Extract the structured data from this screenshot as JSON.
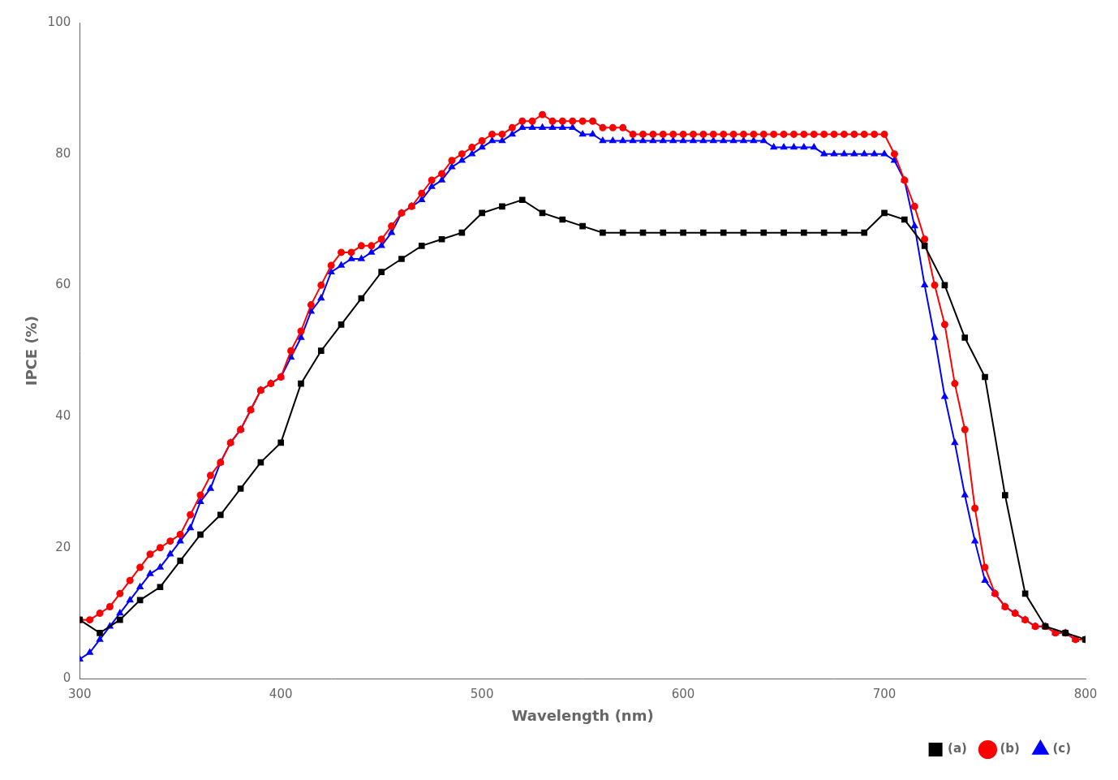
{
  "chart_data": {
    "type": "line",
    "x_label": "Wavelength (nm)",
    "y_label": "IPCE (%)",
    "xlim": [
      300,
      800
    ],
    "ylim": [
      0,
      100
    ],
    "xticks": [
      300,
      400,
      500,
      600,
      700,
      800
    ],
    "yticks": [
      0,
      20,
      40,
      60,
      80,
      100
    ],
    "grid": false,
    "legend": "lower right",
    "series": [
      {
        "name": "(a)",
        "color": "#000000",
        "marker": "square",
        "x": [
          300,
          310,
          320,
          330,
          340,
          350,
          360,
          370,
          380,
          390,
          400,
          410,
          420,
          430,
          440,
          450,
          460,
          470,
          480,
          490,
          500,
          510,
          520,
          530,
          540,
          550,
          560,
          570,
          580,
          590,
          600,
          610,
          620,
          630,
          640,
          650,
          660,
          670,
          680,
          690,
          700,
          710,
          720,
          730,
          740,
          750,
          760,
          770,
          780,
          790,
          800
        ],
        "values": [
          9,
          7,
          9,
          12,
          14,
          18,
          22,
          25,
          29,
          33,
          36,
          45,
          50,
          54,
          58,
          62,
          64,
          66,
          67,
          68,
          71,
          72,
          73,
          71,
          70,
          69,
          68,
          68,
          68,
          68,
          68,
          68,
          68,
          68,
          68,
          68,
          68,
          68,
          68,
          68,
          71,
          70,
          66,
          60,
          52,
          46,
          28,
          13,
          8,
          7,
          6
        ]
      },
      {
        "name": "(b)",
        "color": "#FF0000",
        "marker": "circle",
        "x": [
          300,
          305,
          310,
          315,
          320,
          325,
          330,
          335,
          340,
          345,
          350,
          355,
          360,
          365,
          370,
          375,
          380,
          385,
          390,
          395,
          400,
          405,
          410,
          415,
          420,
          425,
          430,
          435,
          440,
          445,
          450,
          455,
          460,
          465,
          470,
          475,
          480,
          485,
          490,
          495,
          500,
          505,
          510,
          515,
          520,
          525,
          530,
          535,
          540,
          545,
          550,
          555,
          560,
          565,
          570,
          575,
          580,
          585,
          590,
          595,
          600,
          605,
          610,
          615,
          620,
          625,
          630,
          635,
          640,
          645,
          650,
          655,
          660,
          665,
          670,
          675,
          680,
          685,
          690,
          695,
          700,
          705,
          710,
          715,
          720,
          725,
          730,
          735,
          740,
          745,
          750,
          755,
          760,
          765,
          770,
          775,
          780,
          785,
          790,
          795,
          800
        ],
        "values": [
          9,
          9,
          10,
          11,
          13,
          15,
          17,
          19,
          20,
          21,
          22,
          25,
          28,
          31,
          33,
          36,
          38,
          41,
          44,
          45,
          46,
          50,
          53,
          57,
          60,
          63,
          65,
          65,
          66,
          66,
          67,
          69,
          71,
          72,
          74,
          76,
          77,
          79,
          80,
          81,
          82,
          83,
          83,
          84,
          85,
          85,
          86,
          85,
          85,
          85,
          85,
          85,
          84,
          84,
          84,
          83,
          83,
          83,
          83,
          83,
          83,
          83,
          83,
          83,
          83,
          83,
          83,
          83,
          83,
          83,
          83,
          83,
          83,
          83,
          83,
          83,
          83,
          83,
          83,
          83,
          83,
          80,
          76,
          72,
          67,
          60,
          54,
          45,
          38,
          26,
          17,
          13,
          11,
          10,
          9,
          8,
          8,
          7,
          7,
          6,
          6
        ]
      },
      {
        "name": "(c)",
        "color": "#0000FF",
        "marker": "triangle",
        "x": [
          300,
          305,
          310,
          315,
          320,
          325,
          330,
          335,
          340,
          345,
          350,
          355,
          360,
          365,
          370,
          375,
          380,
          385,
          390,
          395,
          400,
          405,
          410,
          415,
          420,
          425,
          430,
          435,
          440,
          445,
          450,
          455,
          460,
          465,
          470,
          475,
          480,
          485,
          490,
          495,
          500,
          505,
          510,
          515,
          520,
          525,
          530,
          535,
          540,
          545,
          550,
          555,
          560,
          565,
          570,
          575,
          580,
          585,
          590,
          595,
          600,
          605,
          610,
          615,
          620,
          625,
          630,
          635,
          640,
          645,
          650,
          655,
          660,
          665,
          670,
          675,
          680,
          685,
          690,
          695,
          700,
          705,
          710,
          715,
          720,
          725,
          730,
          735,
          740,
          745,
          750,
          755,
          760,
          765,
          770,
          775,
          780,
          785,
          790,
          795,
          800
        ],
        "values": [
          3,
          4,
          6,
          8,
          10,
          12,
          14,
          16,
          17,
          19,
          21,
          23,
          27,
          29,
          33,
          36,
          38,
          41,
          44,
          45,
          46,
          49,
          52,
          56,
          58,
          62,
          63,
          64,
          64,
          65,
          66,
          68,
          71,
          72,
          73,
          75,
          76,
          78,
          79,
          80,
          81,
          82,
          82,
          83,
          84,
          84,
          84,
          84,
          84,
          84,
          83,
          83,
          82,
          82,
          82,
          82,
          82,
          82,
          82,
          82,
          82,
          82,
          82,
          82,
          82,
          82,
          82,
          82,
          82,
          81,
          81,
          81,
          81,
          81,
          80,
          80,
          80,
          80,
          80,
          80,
          80,
          79,
          76,
          69,
          60,
          52,
          43,
          36,
          28,
          21,
          15,
          13,
          11,
          10,
          9,
          8,
          8,
          7,
          7,
          6,
          6
        ]
      }
    ]
  }
}
